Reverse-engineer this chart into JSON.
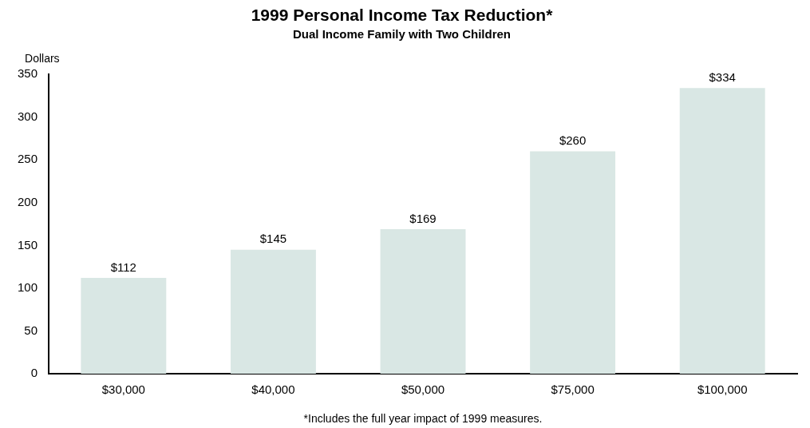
{
  "chart_data": {
    "type": "bar",
    "title": "1999 Personal Income Tax Reduction*",
    "subtitle": "Dual Income Family with Two Children",
    "ylabel": "Dollars",
    "categories": [
      "$30,000",
      "$40,000",
      "$50,000",
      "$75,000",
      "$100,000"
    ],
    "values": [
      112,
      145,
      169,
      260,
      334
    ],
    "value_labels": [
      "$112",
      "$145",
      "$169",
      "$260",
      "$334"
    ],
    "color": "#d9e7e4",
    "ylim": [
      0,
      350
    ],
    "yticks": [
      0,
      50,
      100,
      150,
      200,
      250,
      300,
      350
    ],
    "grid": false,
    "legend": false,
    "annotations": [
      "*Includes the full year impact of 1999 measures."
    ]
  }
}
